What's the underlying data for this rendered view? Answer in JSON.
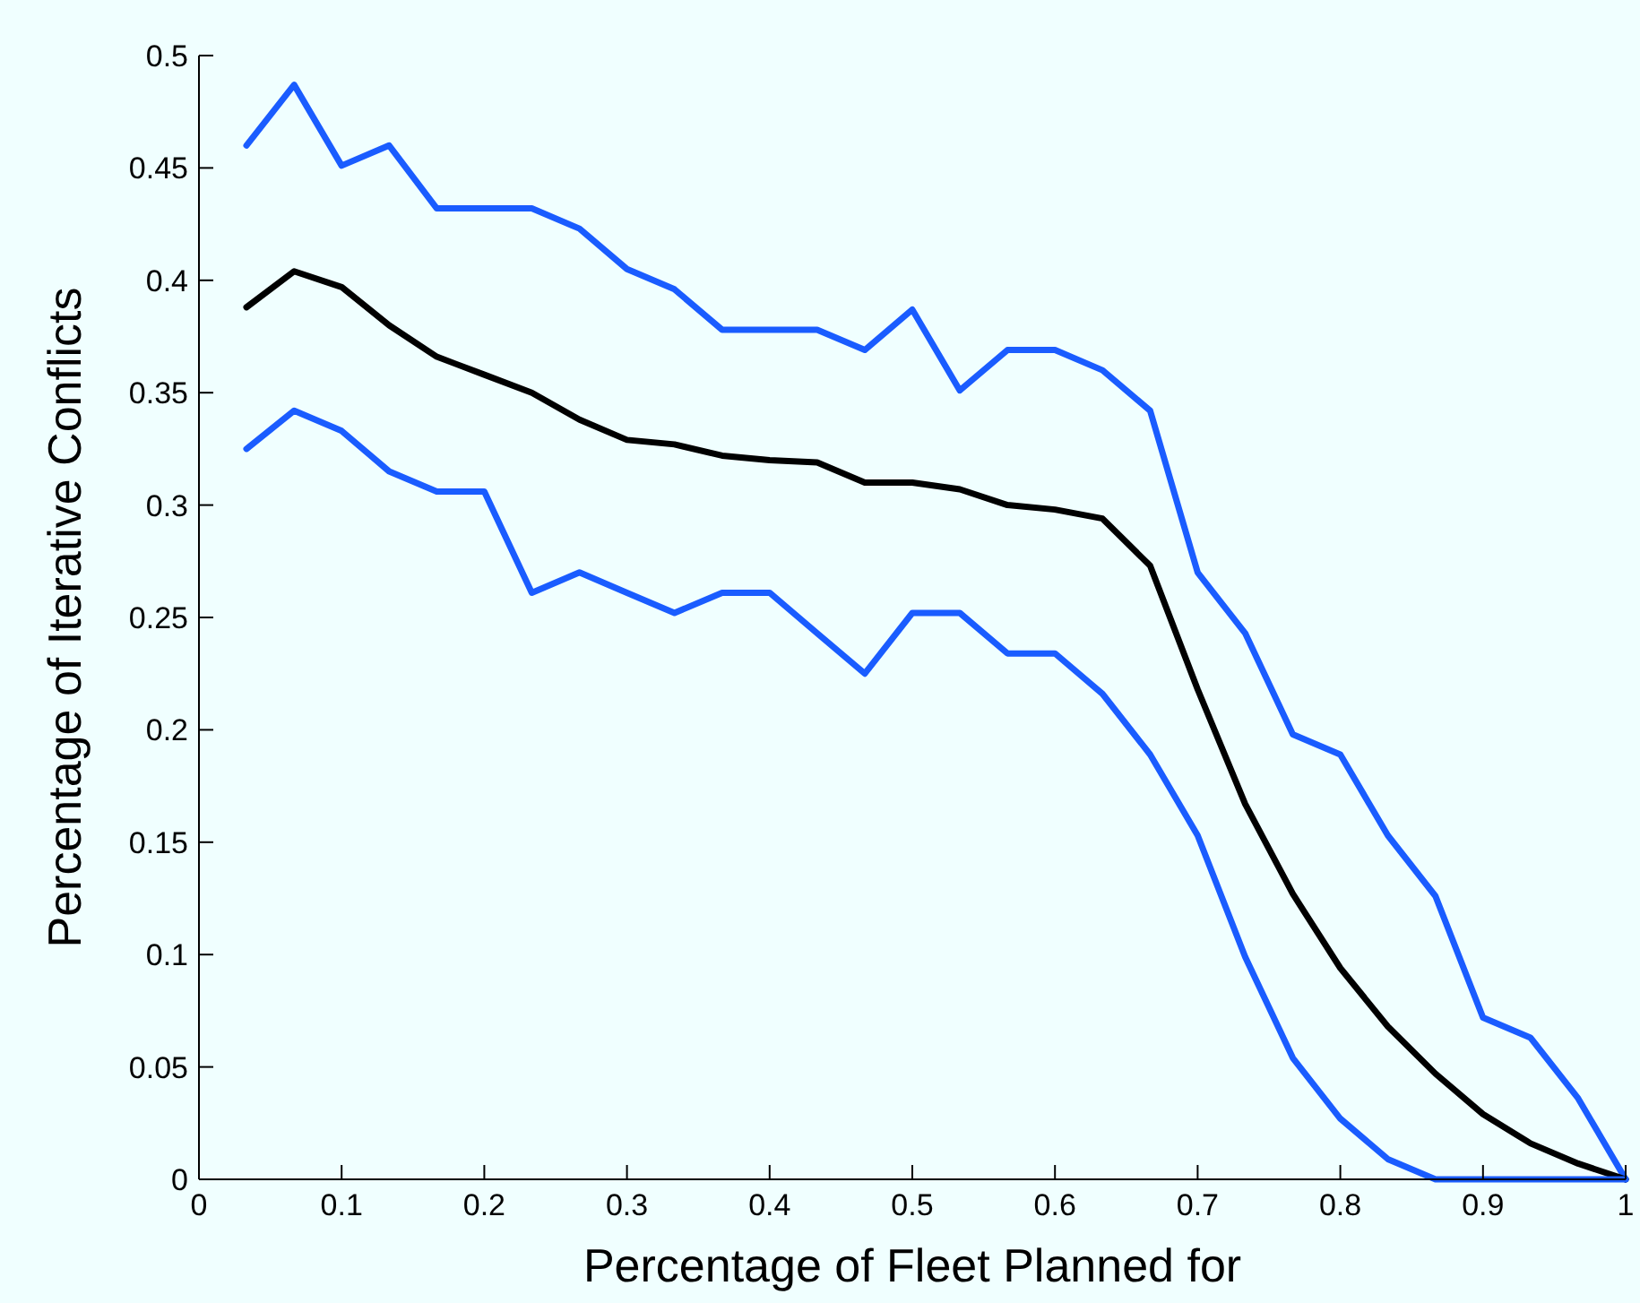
{
  "chart_data": {
    "type": "line",
    "xlabel": "Percentage of Fleet Planned for",
    "ylabel": "Percentage of Iterative Conflicts",
    "x": [
      0.0333,
      0.0667,
      0.1,
      0.1333,
      0.1667,
      0.2,
      0.2333,
      0.2667,
      0.3,
      0.3333,
      0.3667,
      0.4,
      0.4333,
      0.4667,
      0.5,
      0.5333,
      0.5667,
      0.6,
      0.6333,
      0.6667,
      0.7,
      0.7333,
      0.7667,
      0.8,
      0.8333,
      0.8667,
      0.9,
      0.9333,
      0.9667,
      1
    ],
    "series": [
      {
        "color": "#1a5cff",
        "values": [
          0.46,
          0.487,
          0.451,
          0.46,
          0.432,
          0.432,
          0.432,
          0.423,
          0.405,
          0.396,
          0.378,
          0.378,
          0.378,
          0.369,
          0.387,
          0.351,
          0.369,
          0.369,
          0.36,
          0.342,
          0.27,
          0.243,
          0.198,
          0.189,
          0.153,
          0.126,
          0.072,
          0.063,
          0.036,
          0
        ]
      },
      {
        "color": "#000000",
        "values": [
          0.388,
          0.404,
          0.397,
          0.38,
          0.366,
          0.358,
          0.35,
          0.338,
          0.329,
          0.327,
          0.322,
          0.32,
          0.319,
          0.31,
          0.31,
          0.307,
          0.3,
          0.298,
          0.294,
          0.273,
          0.218,
          0.167,
          0.127,
          0.094,
          0.068,
          0.047,
          0.029,
          0.016,
          0.007,
          0
        ]
      },
      {
        "color": "#1a5cff",
        "values": [
          0.325,
          0.342,
          0.333,
          0.315,
          0.306,
          0.306,
          0.261,
          0.27,
          0.261,
          0.252,
          0.261,
          0.261,
          0.243,
          0.225,
          0.252,
          0.252,
          0.234,
          0.234,
          0.216,
          0.189,
          0.153,
          0.099,
          0.054,
          0.027,
          0.009,
          0,
          0,
          0,
          0,
          0
        ]
      }
    ],
    "xlim": [
      0,
      1
    ],
    "xticks": [
      0,
      0.1,
      0.2,
      0.3,
      0.4,
      0.5,
      0.6,
      0.7,
      0.8,
      0.9,
      1
    ],
    "ylim": [
      0,
      0.5
    ],
    "yticks": [
      0,
      0.05,
      0.1,
      0.15,
      0.2,
      0.25,
      0.3,
      0.35,
      0.4,
      0.45,
      0.5
    ],
    "grid": false,
    "marker": "none",
    "line_style": "solid"
  }
}
